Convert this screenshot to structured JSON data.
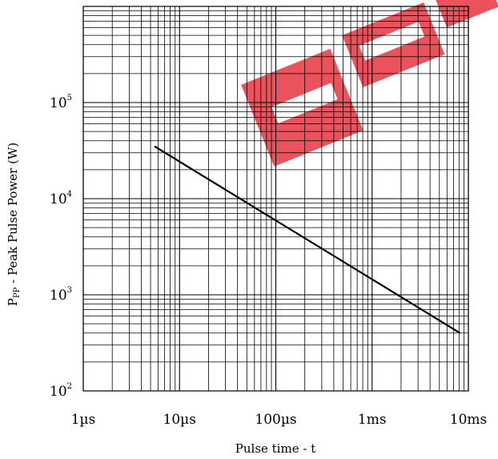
{
  "chart_data": {
    "type": "line",
    "scale": {
      "x": "log",
      "y": "log"
    },
    "grid": true,
    "xlim": [
      "1µs",
      "10ms"
    ],
    "ylim": [
      100,
      1000000
    ],
    "x_tick_labels": [
      "1µs",
      "10µs",
      "100µs",
      "1ms",
      "10ms"
    ],
    "y_tick_labels": [
      {
        "base": "10",
        "exp": "2"
      },
      {
        "base": "10",
        "exp": "3"
      },
      {
        "base": "10",
        "exp": "4"
      },
      {
        "base": "10",
        "exp": "5"
      }
    ],
    "xlabel": "Pulse time - t",
    "ylabel": {
      "prefix": "P",
      "sub": "PP",
      "rest": " - Peak Pulse Power (W)"
    },
    "series": [
      {
        "color": "#000000",
        "x_seconds": [
          5.5e-06,
          0.0082
        ],
        "y": [
          35000,
          400
        ]
      }
    ],
    "watermark_color": "#e8404a"
  }
}
